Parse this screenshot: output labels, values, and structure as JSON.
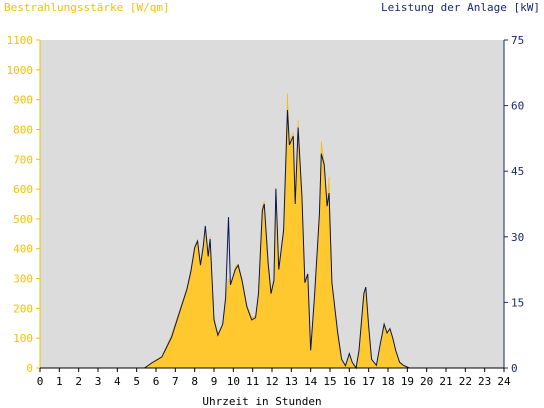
{
  "chart_data": {
    "type": "area",
    "left_axis_label": "Bestrahlungsstärke [W/qm]",
    "right_axis_label": "Leistung der Anlage [kW]",
    "xlabel": "Uhrzeit in Stunden",
    "xlim": [
      0,
      24
    ],
    "ylim_left": [
      0,
      1100
    ],
    "ylim_right": [
      0,
      75
    ],
    "x_ticks": [
      "0",
      "1",
      "2",
      "3",
      "4",
      "5",
      "6",
      "7",
      "8",
      "9",
      "10",
      "11",
      "12",
      "13",
      "14",
      "15",
      "16",
      "17",
      "18",
      "19",
      "20",
      "21",
      "22",
      "23",
      "24"
    ],
    "y_ticks_left": [
      "0",
      "100",
      "200",
      "300",
      "400",
      "500",
      "600",
      "700",
      "800",
      "900",
      "1000",
      "1100"
    ],
    "y_ticks_right": [
      "0",
      "15",
      "30",
      "45",
      "60",
      "75"
    ],
    "series": [
      {
        "name": "Bestrahlungsstärke",
        "axis": "left",
        "color": "#ffc82e",
        "points": [
          [
            0,
            0
          ],
          [
            5.4,
            0
          ],
          [
            5.8,
            20
          ],
          [
            6.3,
            40
          ],
          [
            6.8,
            110
          ],
          [
            7.2,
            190
          ],
          [
            7.6,
            270
          ],
          [
            7.8,
            330
          ],
          [
            8.0,
            410
          ],
          [
            8.15,
            430
          ],
          [
            8.3,
            350
          ],
          [
            8.45,
            420
          ],
          [
            8.55,
            470
          ],
          [
            8.7,
            380
          ],
          [
            8.8,
            440
          ],
          [
            9.0,
            170
          ],
          [
            9.2,
            115
          ],
          [
            9.45,
            150
          ],
          [
            9.6,
            230
          ],
          [
            9.75,
            300
          ],
          [
            9.9,
            280
          ],
          [
            10.1,
            340
          ],
          [
            10.25,
            350
          ],
          [
            10.45,
            300
          ],
          [
            10.7,
            210
          ],
          [
            10.95,
            170
          ],
          [
            11.15,
            175
          ],
          [
            11.3,
            250
          ],
          [
            11.5,
            540
          ],
          [
            11.6,
            560
          ],
          [
            11.8,
            360
          ],
          [
            11.95,
            260
          ],
          [
            12.1,
            300
          ],
          [
            12.2,
            600
          ],
          [
            12.35,
            340
          ],
          [
            12.6,
            470
          ],
          [
            12.8,
            920
          ],
          [
            12.9,
            760
          ],
          [
            13.1,
            790
          ],
          [
            13.2,
            560
          ],
          [
            13.35,
            830
          ],
          [
            13.55,
            580
          ],
          [
            13.7,
            290
          ],
          [
            13.85,
            320
          ],
          [
            14.0,
            60
          ],
          [
            14.2,
            250
          ],
          [
            14.45,
            520
          ],
          [
            14.55,
            760
          ],
          [
            14.7,
            690
          ],
          [
            14.85,
            550
          ],
          [
            14.95,
            640
          ],
          [
            15.1,
            290
          ],
          [
            15.4,
            120
          ],
          [
            15.6,
            30
          ],
          [
            15.8,
            10
          ],
          [
            16.0,
            50
          ],
          [
            16.15,
            20
          ],
          [
            16.35,
            0
          ],
          [
            16.5,
            60
          ],
          [
            16.75,
            250
          ],
          [
            16.85,
            270
          ],
          [
            17.0,
            140
          ],
          [
            17.15,
            30
          ],
          [
            17.4,
            10
          ],
          [
            17.6,
            80
          ],
          [
            17.8,
            150
          ],
          [
            17.95,
            120
          ],
          [
            18.1,
            130
          ],
          [
            18.25,
            100
          ],
          [
            18.4,
            60
          ],
          [
            18.6,
            20
          ],
          [
            18.8,
            10
          ],
          [
            19.1,
            0
          ],
          [
            24,
            0
          ]
        ]
      },
      {
        "name": "Leistung",
        "axis": "right",
        "color": "#0a1650",
        "points": [
          [
            0,
            0
          ],
          [
            5.4,
            0
          ],
          [
            5.8,
            1.2
          ],
          [
            6.3,
            2.5
          ],
          [
            6.8,
            7
          ],
          [
            7.2,
            12.5
          ],
          [
            7.6,
            18
          ],
          [
            7.8,
            22
          ],
          [
            8.0,
            27.5
          ],
          [
            8.15,
            29
          ],
          [
            8.3,
            23.5
          ],
          [
            8.45,
            28
          ],
          [
            8.55,
            32.5
          ],
          [
            8.7,
            25.5
          ],
          [
            8.8,
            29.5
          ],
          [
            9.0,
            11
          ],
          [
            9.2,
            7.5
          ],
          [
            9.45,
            10
          ],
          [
            9.6,
            16
          ],
          [
            9.75,
            34.5
          ],
          [
            9.85,
            19
          ],
          [
            10.1,
            22.5
          ],
          [
            10.25,
            23.5
          ],
          [
            10.45,
            20
          ],
          [
            10.7,
            14
          ],
          [
            10.95,
            11
          ],
          [
            11.15,
            11.5
          ],
          [
            11.3,
            17
          ],
          [
            11.5,
            36
          ],
          [
            11.6,
            37.5
          ],
          [
            11.8,
            24
          ],
          [
            11.95,
            17
          ],
          [
            12.1,
            20
          ],
          [
            12.2,
            41
          ],
          [
            12.35,
            22.5
          ],
          [
            12.6,
            31.5
          ],
          [
            12.8,
            59
          ],
          [
            12.9,
            51
          ],
          [
            13.1,
            53
          ],
          [
            13.2,
            37.5
          ],
          [
            13.35,
            55
          ],
          [
            13.55,
            39
          ],
          [
            13.7,
            19.5
          ],
          [
            13.85,
            21.5
          ],
          [
            14.0,
            4
          ],
          [
            14.2,
            16.5
          ],
          [
            14.45,
            35
          ],
          [
            14.55,
            49
          ],
          [
            14.7,
            46.5
          ],
          [
            14.85,
            37
          ],
          [
            14.95,
            40
          ],
          [
            15.1,
            19.5
          ],
          [
            15.4,
            8
          ],
          [
            15.6,
            2
          ],
          [
            15.8,
            0.5
          ],
          [
            16.0,
            3.3
          ],
          [
            16.15,
            1.3
          ],
          [
            16.35,
            0
          ],
          [
            16.5,
            4
          ],
          [
            16.75,
            17
          ],
          [
            16.85,
            18.5
          ],
          [
            17.0,
            9.5
          ],
          [
            17.15,
            2
          ],
          [
            17.4,
            0.6
          ],
          [
            17.6,
            5.5
          ],
          [
            17.8,
            10
          ],
          [
            17.95,
            8
          ],
          [
            18.1,
            9
          ],
          [
            18.25,
            6.8
          ],
          [
            18.4,
            4
          ],
          [
            18.6,
            1.3
          ],
          [
            18.8,
            0.6
          ],
          [
            19.1,
            0
          ],
          [
            24,
            0
          ]
        ]
      }
    ],
    "grid": false,
    "legend": "none"
  }
}
